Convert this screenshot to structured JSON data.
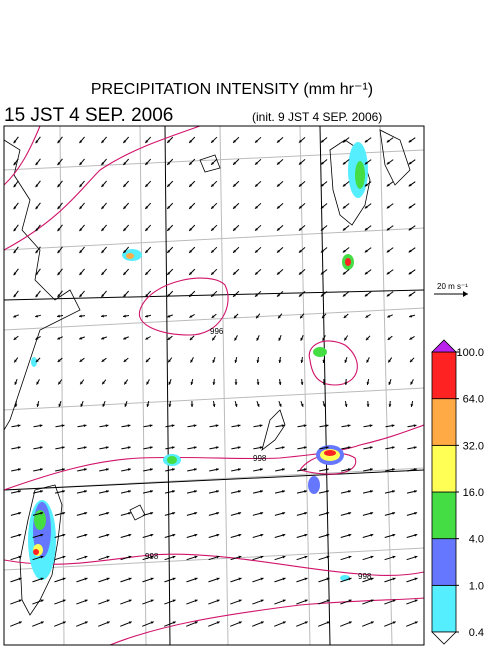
{
  "header": {
    "title": "PRECIPITATION INTENSITY (mm hr⁻¹)",
    "valid_time": "15 JST 4 SEP. 2006",
    "init_time": "(init. 9 JST 4 SEP. 2006)"
  },
  "wind_scale": {
    "label": "20 m s⁻¹"
  },
  "colorbar": {
    "levels": [
      {
        "value": 0.4,
        "label": "0.4"
      },
      {
        "value": 1,
        "label": "1.0"
      },
      {
        "value": 4,
        "label": "4.0"
      },
      {
        "value": 16,
        "label": "16.0"
      },
      {
        "value": 32,
        "label": "32.0"
      },
      {
        "value": 64,
        "label": "64.0"
      },
      {
        "value": 100,
        "label": "100.0"
      }
    ],
    "colors": [
      "#55eeff",
      "#6677ff",
      "#44dd44",
      "#ffff55",
      "#ffaa44",
      "#ff2222"
    ],
    "over_color": "#bb22ee",
    "under_color": "#ffffff"
  },
  "contour_labels": [
    "996",
    "998",
    "998",
    "998"
  ]
}
